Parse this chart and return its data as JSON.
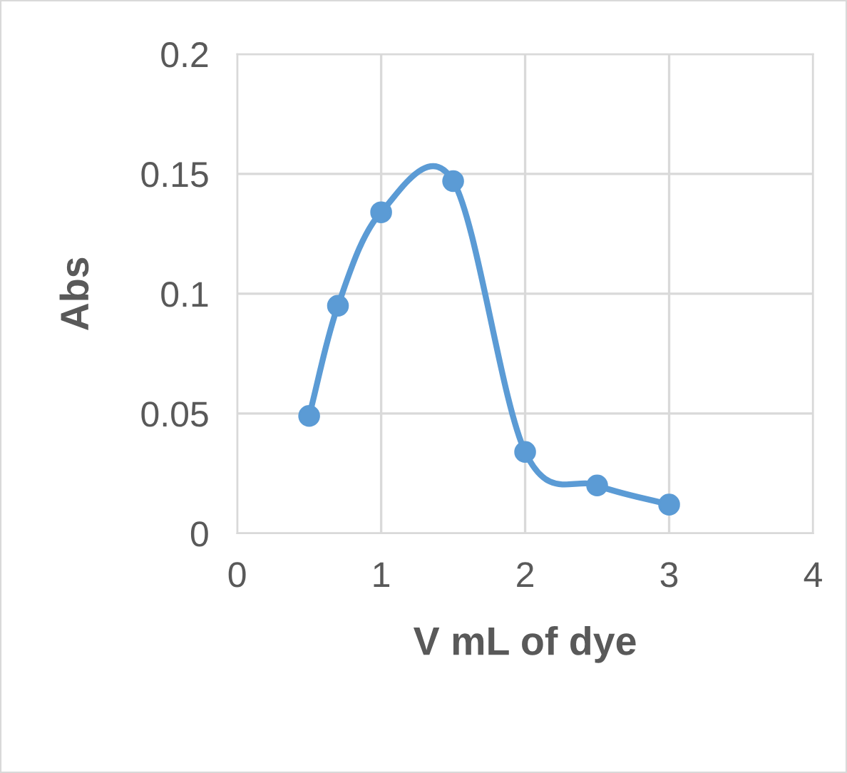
{
  "chart_data": {
    "type": "line",
    "xlabel": "V mL of dye",
    "ylabel": "Abs",
    "x": [
      0.5,
      0.7,
      1,
      1.5,
      2,
      2.5,
      3
    ],
    "series": [
      {
        "color": "#5b9bd5",
        "values": [
          0.049,
          0.095,
          0.134,
          0.147,
          0.034,
          0.02,
          0.012
        ]
      }
    ],
    "xlim": [
      0,
      4
    ],
    "xticks": [
      0,
      1,
      2,
      3,
      4
    ],
    "ylim": [
      0,
      0.2
    ],
    "yticks": [
      0,
      0.05,
      0.1,
      0.15,
      0.2
    ],
    "grid": true,
    "marker": "circle",
    "line_style": "solid"
  }
}
